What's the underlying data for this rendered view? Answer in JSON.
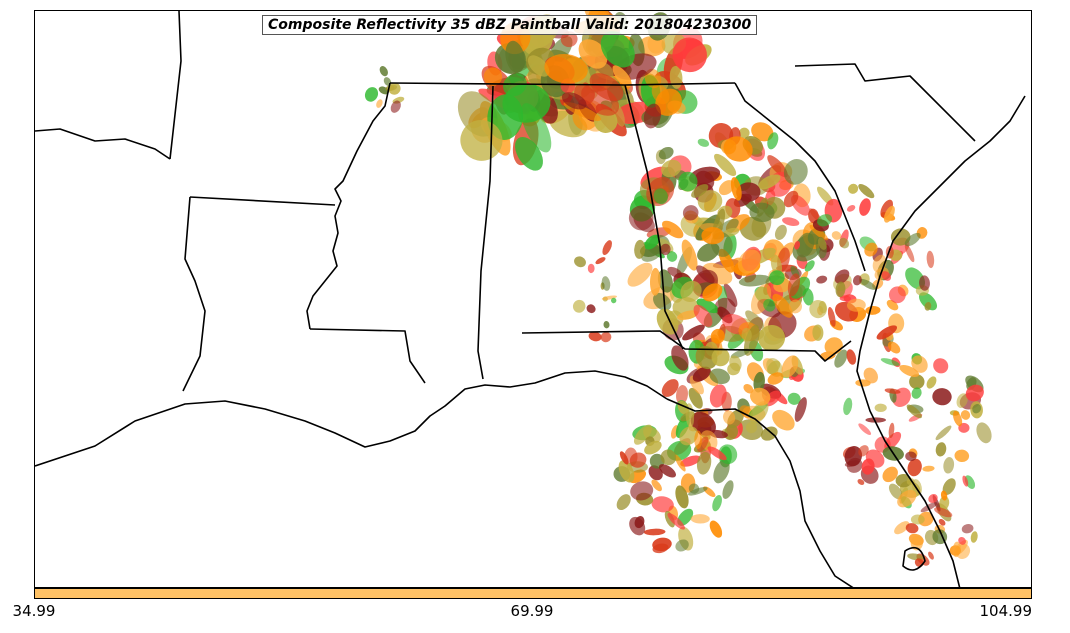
{
  "map": {
    "title": "Composite Reflectivity 35 dBZ Paintball Valid: 201804230300",
    "colors": {
      "member_palette": [
        "#ff3b3b",
        "#ff8c00",
        "#8b1a1a",
        "#2db82d",
        "#9a8f2a",
        "#ffa733",
        "#d93a1a",
        "#5e7a2e",
        "#c0b040"
      ],
      "border": "#000000",
      "background": "#ffffff"
    }
  },
  "colorbar": {
    "color": "#ffc266",
    "ticks": [
      "34.99",
      "69.99",
      "104.99"
    ]
  }
}
